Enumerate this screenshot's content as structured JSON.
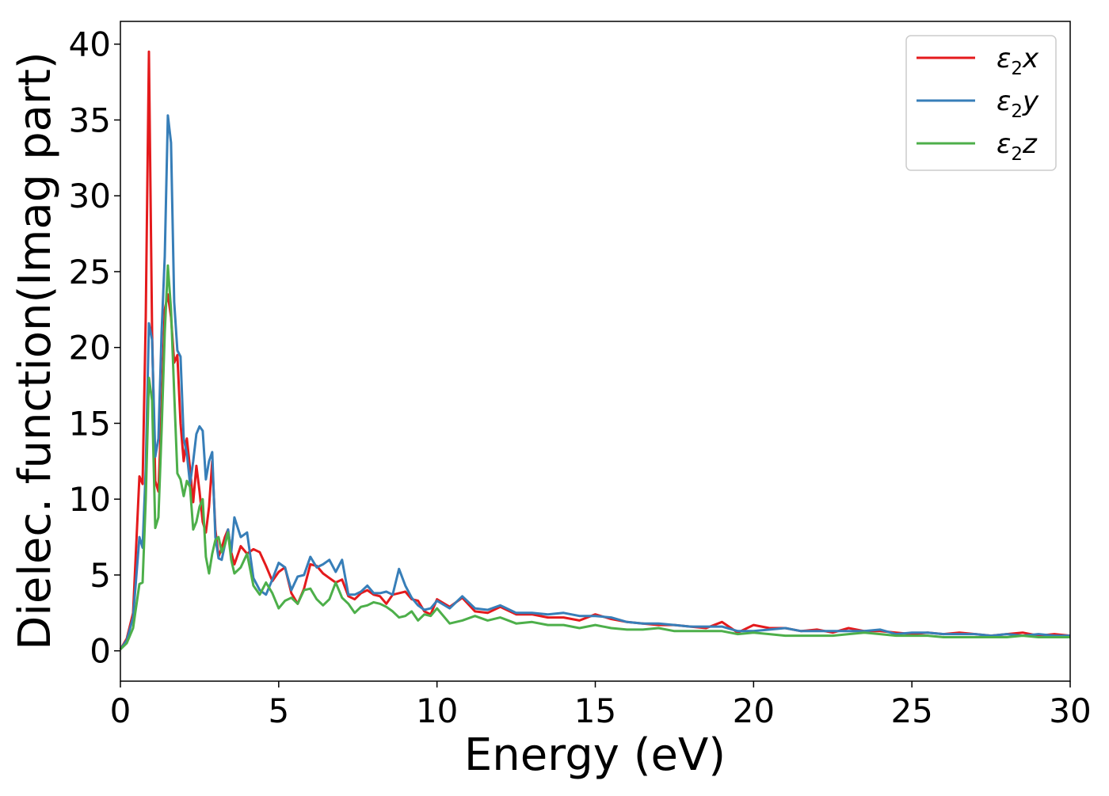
{
  "chart_data": {
    "type": "line",
    "title": "",
    "xlabel": "Energy (eV)",
    "ylabel": "Dielec. function(Imag part)",
    "xlim": [
      0,
      30
    ],
    "ylim": [
      -2,
      41.5
    ],
    "xticks": [
      0,
      5,
      10,
      15,
      20,
      25,
      30
    ],
    "yticks": [
      0,
      5,
      10,
      15,
      20,
      25,
      30,
      35,
      40
    ],
    "grid": false,
    "legend_position": "top-right",
    "x": [
      0,
      0.2,
      0.4,
      0.6,
      0.7,
      0.8,
      0.9,
      1.0,
      1.1,
      1.2,
      1.3,
      1.4,
      1.5,
      1.6,
      1.7,
      1.8,
      1.9,
      2.0,
      2.1,
      2.2,
      2.3,
      2.4,
      2.5,
      2.6,
      2.7,
      2.8,
      2.9,
      3.0,
      3.1,
      3.2,
      3.3,
      3.4,
      3.5,
      3.6,
      3.8,
      4.0,
      4.2,
      4.4,
      4.6,
      4.8,
      5.0,
      5.2,
      5.4,
      5.6,
      5.8,
      6.0,
      6.2,
      6.4,
      6.6,
      6.8,
      7.0,
      7.2,
      7.4,
      7.6,
      7.8,
      8.0,
      8.2,
      8.4,
      8.6,
      8.8,
      9.0,
      9.2,
      9.4,
      9.6,
      9.8,
      10.0,
      10.4,
      10.8,
      11.2,
      11.6,
      12.0,
      12.5,
      13.0,
      13.5,
      14.0,
      14.5,
      15.0,
      15.5,
      16.0,
      16.5,
      17.0,
      17.5,
      18.0,
      18.5,
      19.0,
      19.5,
      20.0,
      20.5,
      21.0,
      21.5,
      22.0,
      22.5,
      23.0,
      23.5,
      24.0,
      24.5,
      25.0,
      25.5,
      26.0,
      26.5,
      27.0,
      27.5,
      28.0,
      28.5,
      29.0,
      29.5,
      30.0
    ],
    "series": [
      {
        "name": "ε₂x",
        "name_base": "ε",
        "name_sub": "2",
        "name_suffix": "x",
        "color": "#e41a1c",
        "values": [
          0.1,
          0.8,
          2.5,
          11.5,
          11.0,
          22.0,
          39.5,
          21.0,
          11.2,
          10.5,
          16.0,
          22.5,
          23.5,
          22.0,
          19.0,
          19.5,
          15.0,
          12.5,
          14.0,
          12.0,
          9.8,
          12.2,
          10.5,
          8.5,
          7.8,
          9.5,
          12.5,
          8.0,
          6.2,
          6.8,
          7.5,
          8.0,
          6.5,
          5.7,
          6.9,
          6.4,
          6.7,
          6.5,
          5.6,
          4.6,
          5.2,
          5.5,
          3.8,
          3.1,
          4.1,
          5.7,
          5.6,
          5.1,
          4.8,
          4.5,
          4.7,
          3.6,
          3.4,
          3.8,
          4.0,
          3.7,
          3.6,
          3.1,
          3.7,
          3.8,
          3.9,
          3.4,
          3.3,
          2.6,
          2.4,
          3.4,
          2.9,
          3.5,
          2.6,
          2.5,
          2.9,
          2.4,
          2.4,
          2.2,
          2.2,
          2.0,
          2.4,
          2.1,
          1.9,
          1.8,
          1.7,
          1.7,
          1.6,
          1.5,
          1.9,
          1.2,
          1.7,
          1.5,
          1.5,
          1.3,
          1.4,
          1.2,
          1.5,
          1.3,
          1.3,
          1.2,
          1.1,
          1.2,
          1.1,
          1.2,
          1.1,
          1.0,
          1.1,
          1.2,
          1.0,
          1.1,
          1.0
        ]
      },
      {
        "name": "ε₂y",
        "name_base": "ε",
        "name_sub": "2",
        "name_suffix": "y",
        "color": "#377eb8",
        "values": [
          0.1,
          0.7,
          2.2,
          7.5,
          6.8,
          12.0,
          21.6,
          20.5,
          12.8,
          14.0,
          21.0,
          26.0,
          35.3,
          33.5,
          23.0,
          19.8,
          19.4,
          14.0,
          13.0,
          11.0,
          12.5,
          14.3,
          14.8,
          14.5,
          11.3,
          12.5,
          13.1,
          7.5,
          6.1,
          6.0,
          7.0,
          8.0,
          6.5,
          8.8,
          7.5,
          7.8,
          4.8,
          4.0,
          3.7,
          4.7,
          5.8,
          5.5,
          4.0,
          4.9,
          5.0,
          6.2,
          5.5,
          5.7,
          6.0,
          5.2,
          6.0,
          3.7,
          3.7,
          3.9,
          4.3,
          3.8,
          3.8,
          3.9,
          3.7,
          5.4,
          4.3,
          3.5,
          3.0,
          2.7,
          2.8,
          3.3,
          2.8,
          3.6,
          2.8,
          2.7,
          3.0,
          2.5,
          2.5,
          2.4,
          2.5,
          2.3,
          2.3,
          2.2,
          1.9,
          1.8,
          1.8,
          1.7,
          1.6,
          1.6,
          1.6,
          1.3,
          1.3,
          1.4,
          1.5,
          1.3,
          1.3,
          1.3,
          1.3,
          1.3,
          1.4,
          1.1,
          1.2,
          1.2,
          1.1,
          1.1,
          1.1,
          1.0,
          1.1,
          1.0,
          1.1,
          1.0,
          1.0
        ]
      },
      {
        "name": "ε₂z",
        "name_base": "ε",
        "name_sub": "2",
        "name_suffix": "z",
        "color": "#4daf4a",
        "values": [
          0.1,
          0.5,
          1.5,
          4.4,
          4.5,
          10.0,
          18.0,
          16.5,
          8.1,
          8.8,
          14.5,
          21.0,
          25.4,
          22.5,
          17.0,
          11.7,
          11.3,
          10.2,
          11.2,
          10.8,
          8.0,
          8.5,
          9.5,
          10.0,
          6.2,
          5.1,
          6.4,
          7.3,
          7.5,
          6.5,
          7.0,
          7.8,
          6.0,
          5.1,
          5.5,
          6.4,
          4.3,
          3.7,
          4.5,
          3.8,
          2.8,
          3.3,
          3.5,
          3.1,
          4.0,
          4.1,
          3.4,
          3.0,
          3.4,
          4.5,
          3.5,
          3.1,
          2.5,
          2.9,
          3.0,
          3.2,
          3.1,
          2.9,
          2.6,
          2.2,
          2.3,
          2.6,
          2.0,
          2.4,
          2.3,
          2.8,
          1.8,
          2.0,
          2.3,
          2.0,
          2.2,
          1.8,
          1.9,
          1.7,
          1.7,
          1.5,
          1.7,
          1.5,
          1.4,
          1.4,
          1.5,
          1.3,
          1.3,
          1.3,
          1.3,
          1.1,
          1.2,
          1.1,
          1.0,
          1.0,
          1.0,
          1.0,
          1.1,
          1.2,
          1.1,
          1.0,
          1.0,
          1.0,
          0.9,
          0.9,
          0.9,
          0.9,
          0.9,
          1.0,
          0.9,
          0.9,
          0.9
        ]
      }
    ]
  }
}
